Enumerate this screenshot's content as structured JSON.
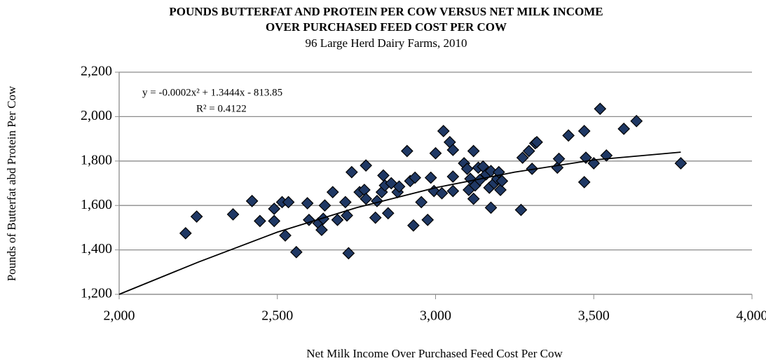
{
  "chart_data": {
    "type": "scatter",
    "title": [
      "POUNDS BUTTERFAT AND PROTEIN PER COW VERSUS NET MILK INCOME",
      "OVER PURCHASED FEED COST PER COW"
    ],
    "subtitle": "96 Large Herd Dairy Farms, 2010",
    "x_label": "Net Milk Income Over Purchased Feed Cost Per Cow",
    "y_label": "Pounds of Butterfat abd Protein Per Cow",
    "xlim": [
      2000,
      4000
    ],
    "ylim": [
      1200,
      2200
    ],
    "xticks": [
      {
        "value": 2000,
        "label": "2,000"
      },
      {
        "value": 2500,
        "label": "2,500"
      },
      {
        "value": 3000,
        "label": "3,000"
      },
      {
        "value": 3500,
        "label": "3,500"
      },
      {
        "value": 4000,
        "label": "4,000"
      }
    ],
    "yticks": [
      {
        "value": 1200,
        "label": "1,200"
      },
      {
        "value": 1400,
        "label": "1,400"
      },
      {
        "value": 1600,
        "label": "1,600"
      },
      {
        "value": 1800,
        "label": "1,800"
      },
      {
        "value": 2000,
        "label": "2,000"
      },
      {
        "value": 2200,
        "label": "2,200"
      }
    ],
    "grid": true,
    "color": "#1f3864",
    "series": [
      {
        "x": [
          2210,
          2245,
          2360,
          2420,
          2445,
          2490,
          2490,
          2515,
          2525,
          2535,
          2560,
          2595,
          2600,
          2630,
          2640,
          2645,
          2650,
          2675,
          2690,
          2715,
          2720,
          2725,
          2735,
          2760,
          2775,
          2780,
          2780,
          2810,
          2815,
          2830,
          2835,
          2840,
          2850,
          2860,
          2880,
          2885,
          2910,
          2920,
          2930,
          2935,
          2955,
          2975,
          2985,
          2995,
          3000,
          3020,
          3025,
          3045,
          3055,
          3055,
          3055,
          3090,
          3100,
          3105,
          3110,
          3120,
          3120,
          3125,
          3135,
          3140,
          3150,
          3160,
          3170,
          3175,
          3175,
          3185,
          3195,
          3200,
          3205,
          3210,
          3270,
          3275,
          3295,
          3305,
          3315,
          3320,
          3385,
          3390,
          3420,
          3470,
          3470,
          3475,
          3500,
          3520,
          3540,
          3595,
          3635,
          3775
        ],
        "values": [
          1475,
          1550,
          1560,
          1620,
          1530,
          1585,
          1530,
          1615,
          1465,
          1615,
          1390,
          1610,
          1535,
          1520,
          1490,
          1540,
          1600,
          1660,
          1535,
          1615,
          1555,
          1385,
          1750,
          1660,
          1670,
          1780,
          1630,
          1545,
          1620,
          1660,
          1735,
          1690,
          1565,
          1700,
          1660,
          1685,
          1845,
          1710,
          1510,
          1725,
          1615,
          1535,
          1725,
          1665,
          1835,
          1655,
          1935,
          1885,
          1850,
          1730,
          1665,
          1790,
          1765,
          1670,
          1720,
          1845,
          1630,
          1690,
          1770,
          1715,
          1775,
          1740,
          1680,
          1590,
          1755,
          1700,
          1720,
          1750,
          1670,
          1710,
          1580,
          1815,
          1845,
          1765,
          1880,
          1885,
          1770,
          1810,
          1915,
          1935,
          1705,
          1815,
          1790,
          2035,
          1825,
          1945,
          1980,
          1790
        ]
      }
    ],
    "trendline": {
      "equation": "y = -0.0002x² + 1.3444x - 813.85",
      "r_squared": "R² = 0.4122",
      "x": [
        2000,
        2250,
        2500,
        2750,
        3000,
        3250,
        3500,
        3775
      ],
      "values": [
        1200,
        1345,
        1480,
        1590,
        1680,
        1750,
        1805,
        1840
      ]
    }
  }
}
